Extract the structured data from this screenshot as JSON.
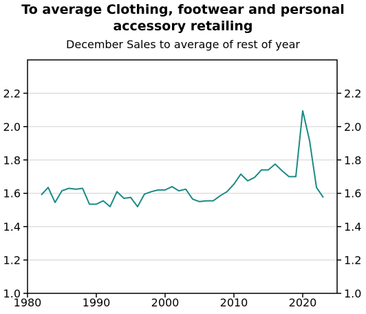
{
  "chart_data": {
    "type": "line",
    "title_lines": [
      "To average Clothing, footwear and personal",
      "accessory retailing"
    ],
    "subtitle": "December Sales to average of rest of year",
    "xlim": [
      1980,
      2025
    ],
    "ylim": [
      1.0,
      2.4
    ],
    "x_ticks": [
      1980,
      1990,
      2000,
      2010,
      2020
    ],
    "y_ticks": [
      1.0,
      1.2,
      1.4,
      1.6,
      1.8,
      2.0,
      2.2
    ],
    "x_tick_labels": [
      "1980",
      "1990",
      "2000",
      "2010",
      "2020"
    ],
    "y_tick_labels": [
      "1.0",
      "1.2",
      "1.4",
      "1.6",
      "1.8",
      "2.0",
      "2.2"
    ],
    "grid": "horizontal",
    "line_color": "#1a8a86",
    "series": [
      {
        "x": [
          1982,
          1983,
          1984,
          1985,
          1986,
          1987,
          1988,
          1989,
          1990,
          1991,
          1992,
          1993,
          1994,
          1995,
          1996,
          1997,
          1998,
          1999,
          2000,
          2001,
          2002,
          2003,
          2004,
          2005,
          2006,
          2007,
          2008,
          2009,
          2010,
          2011,
          2012,
          2013,
          2014,
          2015,
          2016,
          2017,
          2018,
          2019,
          2020,
          2021,
          2022,
          2023
        ],
        "values": [
          1.59,
          1.635,
          1.545,
          1.615,
          1.63,
          1.625,
          1.63,
          1.535,
          1.535,
          1.555,
          1.52,
          1.61,
          1.57,
          1.575,
          1.52,
          1.595,
          1.61,
          1.62,
          1.62,
          1.64,
          1.615,
          1.625,
          1.565,
          1.55,
          1.555,
          1.555,
          1.585,
          1.61,
          1.655,
          1.715,
          1.675,
          1.695,
          1.74,
          1.74,
          1.775,
          1.735,
          1.7,
          1.7,
          2.095,
          1.915,
          1.635,
          1.575
        ]
      }
    ]
  }
}
